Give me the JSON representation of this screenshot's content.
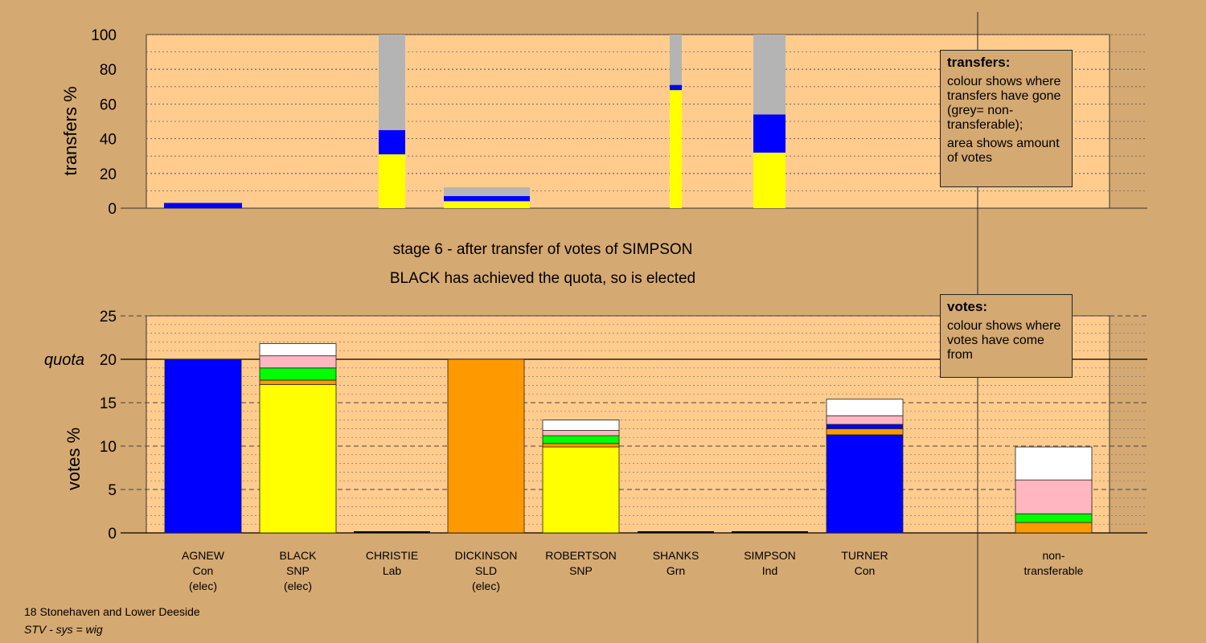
{
  "stage": {
    "title": "stage 6 - after transfer of votes of SIMPSON",
    "subtitle": "BLACK has achieved the quota, so is elected"
  },
  "legends": {
    "transfers": {
      "title": "transfers:",
      "line1": "colour shows where transfers have gone (grey= non-transferable);",
      "line2": "area shows amount of votes"
    },
    "votes": {
      "title": "votes:",
      "line1": "colour shows where votes have come from"
    }
  },
  "footer": {
    "constituency": "18 Stonehaven and Lower Deeside",
    "system": "STV - sys = wig"
  },
  "colors": {
    "Con": "#0000ff",
    "SNP": "#ffff00",
    "SLD": "#ff9900",
    "Lab": "#ff0000",
    "Grn": "#00ff00",
    "Ind": "#ffb6c1",
    "Other": "#ffffff",
    "NonTransferable": "#b4b4b4",
    "plot_bg": "#ffcc8e",
    "page_bg": "#d5a972"
  },
  "chart_data": [
    {
      "type": "bar",
      "name": "transfers",
      "ylabel": "transfers %",
      "ylim": [
        0,
        100
      ],
      "yticks": [
        0,
        20,
        40,
        60,
        80,
        100
      ],
      "note": "stacked bars; width proportional to votes transferred",
      "bars": [
        {
          "candidate": "AGNEW",
          "segments": [
            {
              "to": "Con",
              "value": 3
            }
          ]
        },
        {
          "candidate": "BLACK",
          "segments": [
            {
              "to": "SNP",
              "value": 31
            },
            {
              "to": "Con",
              "value": 14
            },
            {
              "to": "NonTransferable",
              "value": 55
            }
          ]
        },
        {
          "candidate": "DICKINSON",
          "segments": [
            {
              "to": "SNP",
              "value": 4
            },
            {
              "to": "Con",
              "value": 3
            },
            {
              "to": "NonTransferable",
              "value": 5
            }
          ]
        },
        {
          "candidate": "SHANKS",
          "segments": [
            {
              "to": "SNP",
              "value": 68
            },
            {
              "to": "Con",
              "value": 3
            },
            {
              "to": "NonTransferable",
              "value": 29
            }
          ]
        },
        {
          "candidate": "SIMPSON",
          "segments": [
            {
              "to": "SNP",
              "value": 32
            },
            {
              "to": "Con",
              "value": 22
            },
            {
              "to": "NonTransferable",
              "value": 46
            }
          ]
        }
      ]
    },
    {
      "type": "bar",
      "name": "votes",
      "ylabel": "votes %",
      "ylim": [
        0,
        25
      ],
      "yticks": [
        0,
        5,
        10,
        15,
        20,
        25
      ],
      "quota": 20,
      "quota_label": "quota",
      "categories": [
        {
          "name": "AGNEW",
          "party": "Con",
          "status": "(elec)"
        },
        {
          "name": "BLACK",
          "party": "SNP",
          "status": "(elec)"
        },
        {
          "name": "CHRISTIE",
          "party": "Lab",
          "status": ""
        },
        {
          "name": "DICKINSON",
          "party": "SLD",
          "status": "(elec)"
        },
        {
          "name": "ROBERTSON",
          "party": "SNP",
          "status": ""
        },
        {
          "name": "SHANKS",
          "party": "Grn",
          "status": ""
        },
        {
          "name": "SIMPSON",
          "party": "Ind",
          "status": ""
        },
        {
          "name": "TURNER",
          "party": "Con",
          "status": ""
        },
        {
          "name": "non-",
          "party": "transferable",
          "status": ""
        }
      ],
      "stacks": [
        [
          {
            "from": "Con",
            "value": 20
          }
        ],
        [
          {
            "from": "SNP",
            "value": 17.1
          },
          {
            "from": "SLD",
            "value": 0.5
          },
          {
            "from": "Grn",
            "value": 1.4
          },
          {
            "from": "Ind",
            "value": 1.4
          },
          {
            "from": "Other",
            "value": 1.4
          }
        ],
        [],
        [
          {
            "from": "SLD",
            "value": 20
          }
        ],
        [
          {
            "from": "SNP",
            "value": 9.9
          },
          {
            "from": "SLD",
            "value": 0.4
          },
          {
            "from": "Grn",
            "value": 0.9
          },
          {
            "from": "Ind",
            "value": 0.6
          },
          {
            "from": "Other",
            "value": 1.2
          }
        ],
        [],
        [],
        [
          {
            "from": "Con",
            "value": 11.3
          },
          {
            "from": "SLD",
            "value": 0.7
          },
          {
            "from": "Lab",
            "value": 0.0
          },
          {
            "from": "Con",
            "value": 0.5
          },
          {
            "from": "Ind",
            "value": 1.0
          },
          {
            "from": "Other",
            "value": 1.9
          }
        ],
        [
          {
            "from": "SLD",
            "value": 1.2
          },
          {
            "from": "Grn",
            "value": 1.0
          },
          {
            "from": "Ind",
            "value": 3.9
          },
          {
            "from": "Other",
            "value": 3.8
          }
        ]
      ]
    }
  ]
}
